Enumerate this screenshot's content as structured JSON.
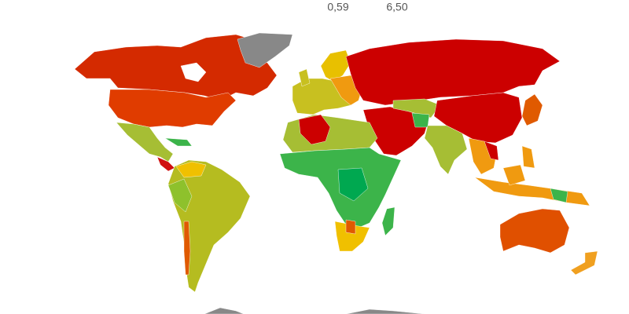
{
  "legend": {
    "min": "0,59",
    "max": "6,50"
  }
}
